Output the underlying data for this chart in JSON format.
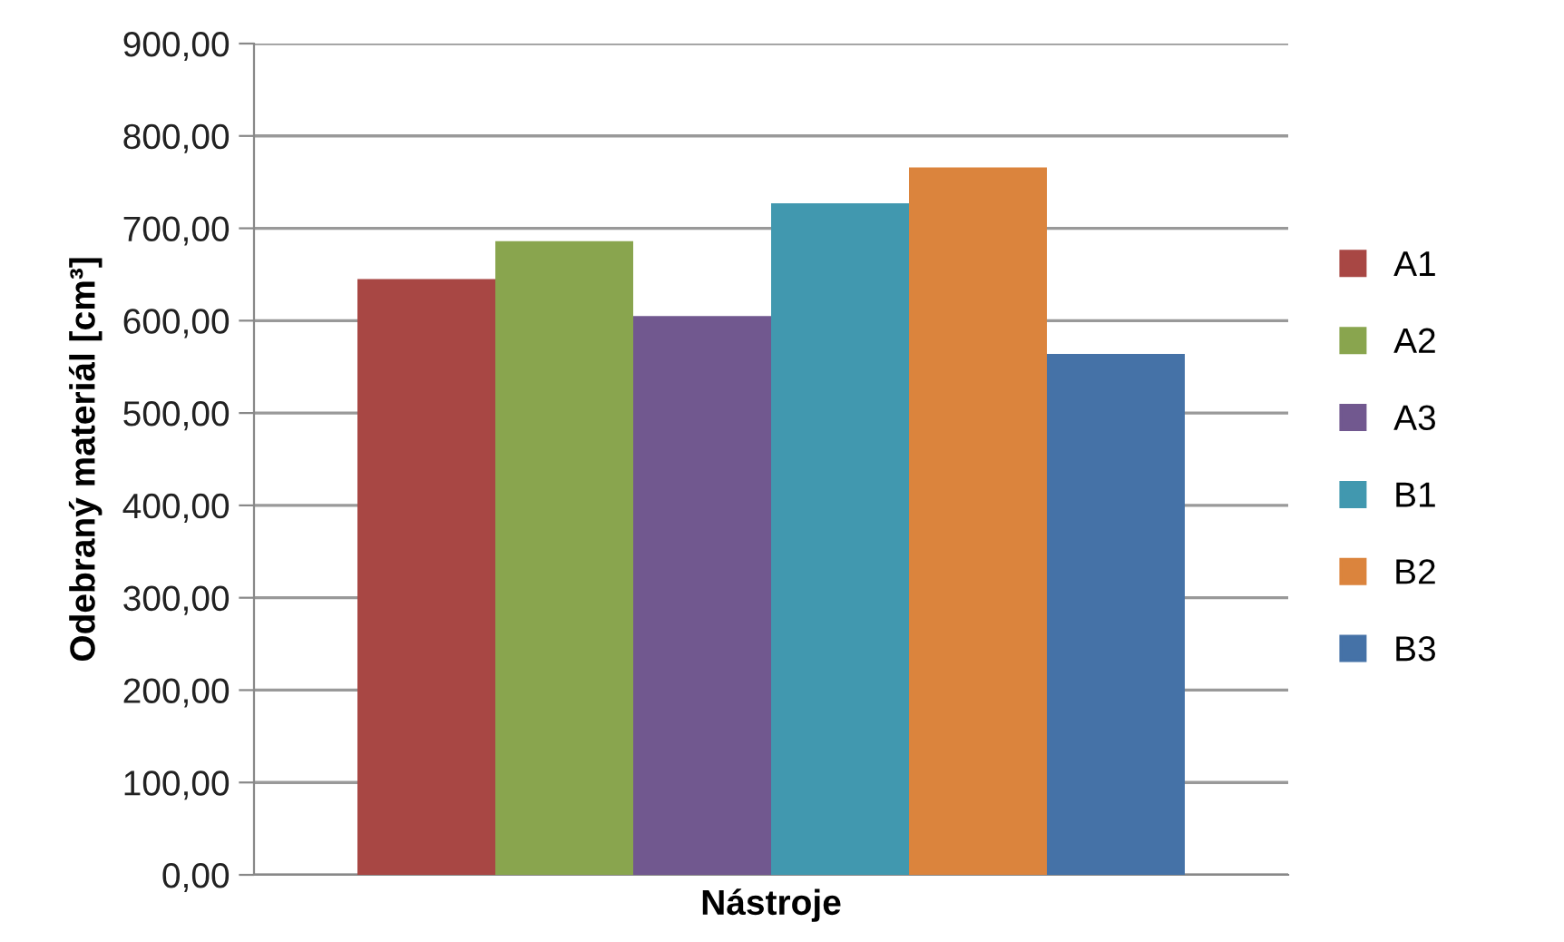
{
  "chart_data": {
    "type": "bar",
    "xlabel": "Nástroje",
    "ylabel": "Odebraný materiál [cm³]",
    "categories": [
      null
    ],
    "series": [
      {
        "name": "A1",
        "color": "#a84744",
        "values": [
          645
        ]
      },
      {
        "name": "A2",
        "color": "#89a54e",
        "values": [
          686
        ]
      },
      {
        "name": "A3",
        "color": "#71588f",
        "values": [
          605
        ]
      },
      {
        "name": "B1",
        "color": "#4198af",
        "values": [
          727
        ]
      },
      {
        "name": "B2",
        "color": "#db843d",
        "values": [
          766
        ]
      },
      {
        "name": "B3",
        "color": "#4572a7",
        "values": [
          564
        ]
      }
    ],
    "ylim": [
      0,
      900
    ],
    "yticks": [
      {
        "value": 0,
        "label": "0,00"
      },
      {
        "value": 100,
        "label": "100,00"
      },
      {
        "value": 200,
        "label": "200,00"
      },
      {
        "value": 300,
        "label": "300,00"
      },
      {
        "value": 400,
        "label": "400,00"
      },
      {
        "value": 500,
        "label": "500,00"
      },
      {
        "value": 600,
        "label": "600,00"
      },
      {
        "value": 700,
        "label": "700,00"
      },
      {
        "value": 800,
        "label": "800,00"
      },
      {
        "value": 900,
        "label": "900,00"
      }
    ],
    "grid": "y",
    "legend": "right"
  }
}
